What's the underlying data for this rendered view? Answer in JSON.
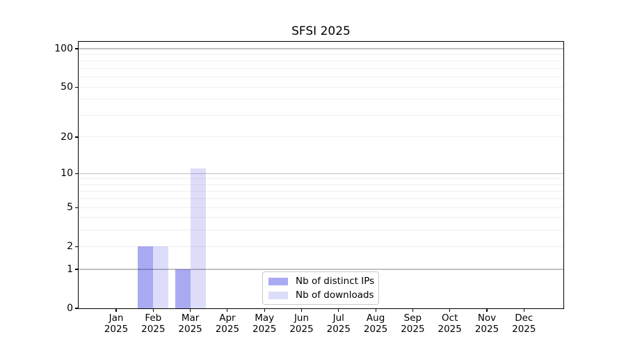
{
  "chart_data": {
    "type": "bar",
    "title": "SFSI 2025",
    "categories": [
      "Jan",
      "Feb",
      "Mar",
      "Apr",
      "May",
      "Jun",
      "Jul",
      "Aug",
      "Sep",
      "Oct",
      "Nov",
      "Dec"
    ],
    "category_year": "2025",
    "series": [
      {
        "key": "distinct-ips",
        "name": "Nb of distinct IPs",
        "color": "rgba(0,0,220,0.335)",
        "values": [
          0,
          2,
          1,
          0,
          0,
          0,
          0,
          0,
          0,
          0,
          0,
          0
        ]
      },
      {
        "key": "downloads",
        "name": "Nb of downloads",
        "color": "rgba(0,0,220,0.133)",
        "values": [
          0,
          2,
          11,
          0,
          0,
          0,
          0,
          0,
          0,
          0,
          0,
          0
        ]
      }
    ],
    "yscale": "log10(1+x)",
    "ylim": [
      0,
      113
    ],
    "y_ticks": [
      0,
      1,
      2,
      5,
      10,
      20,
      50,
      100
    ],
    "major_gridlines": [
      1,
      10,
      100
    ],
    "minor_gridlines": [
      2,
      3,
      4,
      5,
      6,
      7,
      8,
      9,
      20,
      30,
      40,
      50,
      60,
      70,
      80,
      90
    ],
    "legend_position": "lower-center",
    "grid": true,
    "colors": {
      "major_grid": "#c2c2c2",
      "minor_grid": "#efefef",
      "axis": "#000000",
      "background": "#ffffff"
    }
  }
}
